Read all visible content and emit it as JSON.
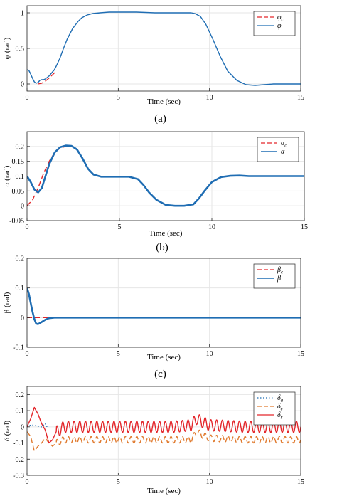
{
  "colors": {
    "command": "#e3262a",
    "actual": "#1f6db3",
    "delta_a": "#1f6db3",
    "delta_e": "#e07a2e",
    "delta_r": "#e3262a",
    "grid": "#e6e6e6"
  },
  "chart_data": [
    {
      "id": "a",
      "type": "line",
      "panel_label": "(a)",
      "xlabel": "Time (sec)",
      "ylabel": "φ (rad)",
      "xlim": [
        0,
        15
      ],
      "ylim": [
        -0.1,
        1.1
      ],
      "xticks": [
        0,
        5,
        10,
        15
      ],
      "xtick_labels": [
        "0",
        "5",
        "10",
        "15"
      ],
      "yticks": [
        0,
        0.5,
        1
      ],
      "ytick_labels": [
        "0",
        "0.5",
        "1"
      ],
      "grid": true,
      "legend_position": "top-right",
      "series": [
        {
          "name": "φc",
          "label_main": "φ",
          "label_sub": "c",
          "style": "dashed",
          "color": "#e3262a",
          "x": [
            0.6,
            0.8,
            1.0,
            1.2,
            1.4,
            1.6
          ],
          "y": [
            0.0,
            0.01,
            0.04,
            0.08,
            0.13,
            0.18
          ]
        },
        {
          "name": "φ",
          "label_main": "φ",
          "label_sub": "",
          "style": "solid",
          "color": "#1f6db3",
          "x": [
            0,
            0.1,
            0.2,
            0.3,
            0.4,
            0.5,
            0.6,
            0.7,
            0.8,
            0.9,
            1.0,
            1.1,
            1.2,
            1.3,
            1.4,
            1.5,
            1.6,
            1.8,
            2.0,
            2.2,
            2.5,
            2.8,
            3.0,
            3.3,
            3.6,
            4.0,
            4.5,
            5.0,
            6.0,
            7.0,
            8.0,
            9.0,
            9.2,
            9.5,
            9.8,
            10.2,
            10.6,
            11.0,
            11.5,
            12.0,
            12.5,
            13.0,
            13.5,
            14.0,
            14.5,
            15.0
          ],
          "y": [
            0.2,
            0.19,
            0.14,
            0.08,
            0.03,
            0.01,
            0.02,
            0.05,
            0.06,
            0.06,
            0.07,
            0.09,
            0.11,
            0.14,
            0.17,
            0.2,
            0.25,
            0.36,
            0.5,
            0.63,
            0.78,
            0.88,
            0.93,
            0.97,
            0.99,
            1.0,
            1.01,
            1.01,
            1.01,
            1.0,
            1.0,
            1.0,
            0.99,
            0.95,
            0.84,
            0.62,
            0.38,
            0.18,
            0.05,
            -0.01,
            -0.02,
            -0.01,
            0.0,
            0.0,
            0.0,
            0.0
          ]
        }
      ]
    },
    {
      "id": "b",
      "type": "line",
      "panel_label": "(b)",
      "xlabel": "Time (sec)",
      "ylabel": "α (rad)",
      "xlim": [
        0,
        15
      ],
      "ylim": [
        -0.05,
        0.25
      ],
      "xticks": [
        0,
        5,
        10,
        15
      ],
      "xtick_labels": [
        "0",
        "5",
        "10",
        "15"
      ],
      "yticks": [
        -0.05,
        0,
        0.05,
        0.1,
        0.15,
        0.2
      ],
      "ytick_labels": [
        "-0.05",
        "0",
        "0.05",
        "0.1",
        "0.15",
        "0.2"
      ],
      "grid": true,
      "legend_position": "top-right",
      "series": [
        {
          "name": "αc",
          "label_main": "α",
          "label_sub": "c",
          "style": "dashed",
          "color": "#e3262a",
          "x": [
            0,
            0.3,
            0.6,
            0.9,
            1.2,
            1.5,
            1.8,
            2.1,
            2.4
          ],
          "y": [
            0.0,
            0.02,
            0.06,
            0.11,
            0.15,
            0.18,
            0.195,
            0.2,
            0.2
          ]
        },
        {
          "name": "α",
          "label_main": "α",
          "label_sub": "",
          "style": "solid-thick",
          "color": "#1f6db3",
          "x": [
            0,
            0.2,
            0.4,
            0.6,
            0.8,
            1.0,
            1.2,
            1.5,
            1.8,
            2.1,
            2.4,
            2.7,
            3.0,
            3.3,
            3.6,
            4.0,
            4.5,
            5.0,
            5.5,
            6.0,
            6.3,
            6.6,
            7.0,
            7.5,
            8.0,
            8.5,
            9.0,
            9.3,
            9.6,
            10.0,
            10.5,
            11.0,
            11.5,
            12.0,
            13.0,
            14.0,
            15.0
          ],
          "y": [
            0.1,
            0.08,
            0.055,
            0.045,
            0.06,
            0.1,
            0.14,
            0.18,
            0.198,
            0.203,
            0.202,
            0.19,
            0.16,
            0.125,
            0.105,
            0.098,
            0.098,
            0.098,
            0.098,
            0.09,
            0.07,
            0.045,
            0.02,
            0.003,
            0.0,
            0.0,
            0.005,
            0.025,
            0.05,
            0.08,
            0.097,
            0.101,
            0.102,
            0.1,
            0.1,
            0.1,
            0.1
          ]
        }
      ]
    },
    {
      "id": "c",
      "type": "line",
      "panel_label": "(c)",
      "xlabel": "Time (sec)",
      "ylabel": "β (rad)",
      "xlim": [
        0,
        15
      ],
      "ylim": [
        -0.1,
        0.2
      ],
      "xticks": [
        0,
        5,
        10,
        15
      ],
      "xtick_labels": [
        "0",
        "5",
        "10",
        "15"
      ],
      "yticks": [
        -0.1,
        0,
        0.1,
        0.2
      ],
      "ytick_labels": [
        "-0.1",
        "0",
        "0.1",
        "0.2"
      ],
      "grid": true,
      "legend_position": "top-right",
      "series": [
        {
          "name": "βc",
          "label_main": "β",
          "label_sub": "c",
          "style": "dashed",
          "color": "#e3262a",
          "x": [
            0,
            1.2
          ],
          "y": [
            0.0,
            0.0
          ]
        },
        {
          "name": "β",
          "label_main": "β",
          "label_sub": "",
          "style": "solid-thick",
          "color": "#1f6db3",
          "x": [
            0,
            0.1,
            0.2,
            0.3,
            0.4,
            0.5,
            0.6,
            0.8,
            1.0,
            1.2,
            1.5,
            2.0,
            3.0,
            5.0,
            8.0,
            11.0,
            13.0,
            15.0
          ],
          "y": [
            0.1,
            0.08,
            0.05,
            0.02,
            -0.005,
            -0.02,
            -0.022,
            -0.015,
            -0.007,
            -0.002,
            0.0,
            0.0,
            0.0,
            0.0,
            0.0,
            0.0,
            0.0,
            0.0
          ]
        }
      ]
    },
    {
      "id": "d",
      "type": "line",
      "panel_label": "",
      "xlabel": "Time (sec)",
      "ylabel": "δ (rad)",
      "xlim": [
        0,
        15
      ],
      "ylim": [
        -0.3,
        0.25
      ],
      "xticks": [
        0,
        5,
        10,
        15
      ],
      "xtick_labels": [
        "0",
        "5",
        "10",
        "15"
      ],
      "yticks": [
        -0.3,
        -0.2,
        -0.1,
        0,
        0.1,
        0.2
      ],
      "ytick_labels": [
        "-0.3",
        "-0.2",
        "-0.1",
        "0",
        "0.1",
        "0.2"
      ],
      "grid": true,
      "legend_position": "top-right",
      "series": [
        {
          "name": "δa",
          "label_main": "δ",
          "label_sub": "a",
          "style": "dotted",
          "color": "#1f6db3",
          "x": [
            0,
            0.2,
            0.4,
            0.6,
            0.8,
            1.0,
            1.1
          ],
          "y": [
            0.0,
            0.01,
            0.01,
            0.005,
            0.0,
            0.02,
            0.0
          ]
        },
        {
          "name": "δe",
          "label_main": "δ",
          "label_sub": "e",
          "style": "dashed",
          "color": "#e07a2e",
          "x": [
            0,
            0.2,
            0.4,
            0.6,
            0.8,
            1.0,
            1.2,
            1.4,
            1.6,
            1.8,
            2.0,
            2.5,
            3.0,
            4.0,
            5.0,
            6.0,
            8.0,
            9.0,
            9.3,
            9.6,
            10.0,
            12.0,
            14.0,
            15.0
          ],
          "y": [
            -0.03,
            -0.06,
            -0.15,
            -0.12,
            -0.1,
            -0.07,
            -0.1,
            -0.12,
            -0.1,
            -0.09,
            -0.08,
            -0.08,
            -0.08,
            -0.08,
            -0.08,
            -0.08,
            -0.08,
            -0.08,
            -0.03,
            -0.05,
            -0.07,
            -0.08,
            -0.08,
            -0.08
          ],
          "oscillation_amplitude": 0.02
        },
        {
          "name": "δr",
          "label_main": "δ",
          "label_sub": "r",
          "style": "solid",
          "color": "#e3262a",
          "x": [
            0,
            0.2,
            0.4,
            0.6,
            0.8,
            1.0,
            1.2,
            1.4,
            1.6,
            1.8,
            2.0,
            2.5,
            3.0,
            4.0,
            5.0,
            6.0,
            8.0,
            9.0,
            9.3,
            9.6,
            10.0,
            12.0,
            14.0,
            15.0
          ],
          "y": [
            0.0,
            0.05,
            0.12,
            0.08,
            0.02,
            -0.02,
            -0.1,
            -0.08,
            -0.03,
            -0.02,
            0.0,
            0.0,
            0.0,
            0.0,
            0.0,
            0.0,
            0.0,
            0.01,
            0.05,
            0.03,
            0.01,
            0.0,
            0.0,
            0.0
          ],
          "oscillation_amplitude": 0.035
        }
      ]
    }
  ]
}
